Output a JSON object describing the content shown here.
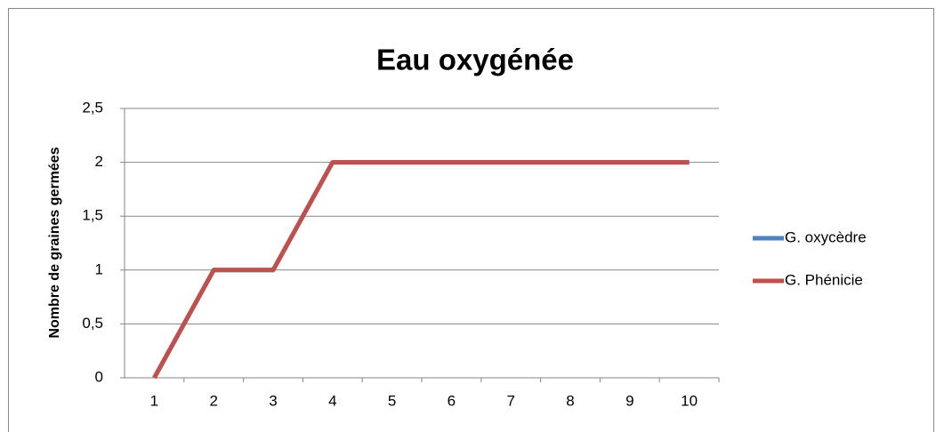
{
  "chart_data": {
    "type": "line",
    "title": "Eau oxygénée",
    "y_label": "Nombre de graines germées",
    "categories": [
      "1",
      "2",
      "3",
      "4",
      "5",
      "6",
      "7",
      "8",
      "9",
      "10"
    ],
    "series": [
      {
        "name": "G. oxycèdre",
        "color": "#4f81bd",
        "values": [
          0,
          1,
          1,
          2,
          2,
          2,
          2,
          2,
          2,
          2
        ]
      },
      {
        "name": "G. Phénicie",
        "color": "#c0504d",
        "values": [
          0,
          1,
          1,
          2,
          2,
          2,
          2,
          2,
          2,
          2
        ]
      }
    ],
    "ylim": [
      0,
      2.5
    ],
    "yticks": [
      0,
      {
        "value": 0.5,
        "label": "0,5"
      },
      1,
      {
        "value": 1.5,
        "label": "1,5"
      },
      2,
      {
        "value": 2.5,
        "label": "2,5"
      }
    ],
    "grid": true,
    "legend": "right"
  }
}
